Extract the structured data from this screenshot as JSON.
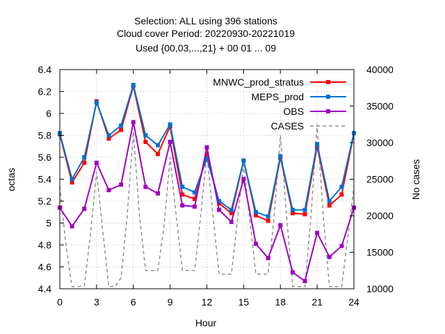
{
  "chart_data": {
    "type": "line",
    "title_lines": [
      "Selection: ALL using   396 stations",
      "Cloud cover   Period: 20220930-20221019",
      "Used {00,03,...,21} + 00 01 ... 09"
    ],
    "xlabel": "Hour",
    "ylabel": "octas",
    "y2label": "No cases",
    "xlim": [
      0,
      24
    ],
    "ylim": [
      4.4,
      6.4
    ],
    "y2lim": [
      10000,
      40000
    ],
    "xticks": [
      "0",
      "3",
      "6",
      "9",
      "12",
      "15",
      "18",
      "21",
      "24"
    ],
    "yticks": [
      "4.4",
      "4.6",
      "4.8",
      "5",
      "5.2",
      "5.4",
      "5.6",
      "5.8",
      "6",
      "6.2",
      "6.4"
    ],
    "y2ticks": [
      "10000",
      "15000",
      "20000",
      "25000",
      "30000",
      "35000",
      "40000"
    ],
    "grid": true,
    "legend_position": "top-right",
    "x": [
      0,
      1,
      2,
      3,
      4,
      5,
      6,
      7,
      8,
      9,
      10,
      11,
      12,
      13,
      14,
      15,
      16,
      17,
      18,
      19,
      20,
      21,
      22,
      23,
      24
    ],
    "series": [
      {
        "name": "MNWC_prod_stratus",
        "axis": "left",
        "color": "#ff0000",
        "marker": "square",
        "values": [
          5.81,
          5.37,
          5.55,
          6.11,
          5.77,
          5.85,
          6.25,
          5.74,
          5.63,
          5.88,
          5.26,
          5.22,
          5.63,
          5.18,
          5.09,
          5.57,
          5.07,
          5.02,
          5.6,
          5.09,
          5.08,
          5.7,
          5.16,
          5.26,
          5.82
        ]
      },
      {
        "name": "MEPS_prod",
        "axis": "left",
        "color": "#0070d0",
        "marker": "square",
        "values": [
          5.82,
          5.4,
          5.6,
          6.1,
          5.8,
          5.89,
          6.26,
          5.8,
          5.71,
          5.9,
          5.33,
          5.28,
          5.59,
          5.2,
          5.12,
          5.57,
          5.1,
          5.06,
          5.61,
          5.12,
          5.12,
          5.72,
          5.2,
          5.33,
          5.82
        ]
      },
      {
        "name": "OBS",
        "axis": "left",
        "color": "#a000c0",
        "marker": "square",
        "values": [
          5.14,
          4.97,
          5.13,
          5.55,
          5.3,
          5.35,
          5.92,
          5.33,
          5.27,
          5.74,
          5.16,
          5.15,
          5.69,
          5.12,
          5.01,
          5.4,
          4.81,
          4.68,
          4.98,
          4.55,
          4.47,
          4.91,
          4.69,
          4.79,
          5.14
        ]
      },
      {
        "name": "CASES",
        "axis": "right",
        "color": "#909090",
        "style": "dashed",
        "x": [
          0,
          0.5,
          1,
          1.5,
          2,
          2.5,
          3,
          3.5,
          4,
          4.5,
          5,
          5.5,
          6,
          6.5,
          7,
          7.5,
          8,
          8.5,
          9,
          9.5,
          10,
          10.5,
          11,
          11.5,
          12,
          12.5,
          13,
          13.5,
          14,
          14.5,
          15,
          15.5,
          16,
          16.5,
          17,
          17.5,
          18,
          18.5,
          19,
          19.5,
          20,
          20.5,
          21,
          21.5,
          22,
          22.5,
          23,
          23.5,
          24
        ],
        "values": [
          24000,
          16000,
          10300,
          10300,
          10400,
          17500,
          26000,
          18000,
          10300,
          10300,
          11500,
          20000,
          31500,
          20000,
          12500,
          12500,
          12500,
          18500,
          28000,
          20000,
          12500,
          12500,
          12500,
          20000,
          28500,
          20000,
          12000,
          12000,
          12000,
          19500,
          27000,
          19500,
          12000,
          12000,
          12000,
          20000,
          31000,
          20000,
          10300,
          10300,
          10300,
          20000,
          32500,
          20000,
          10300,
          10300,
          10300,
          17000,
          24000
        ]
      }
    ]
  }
}
